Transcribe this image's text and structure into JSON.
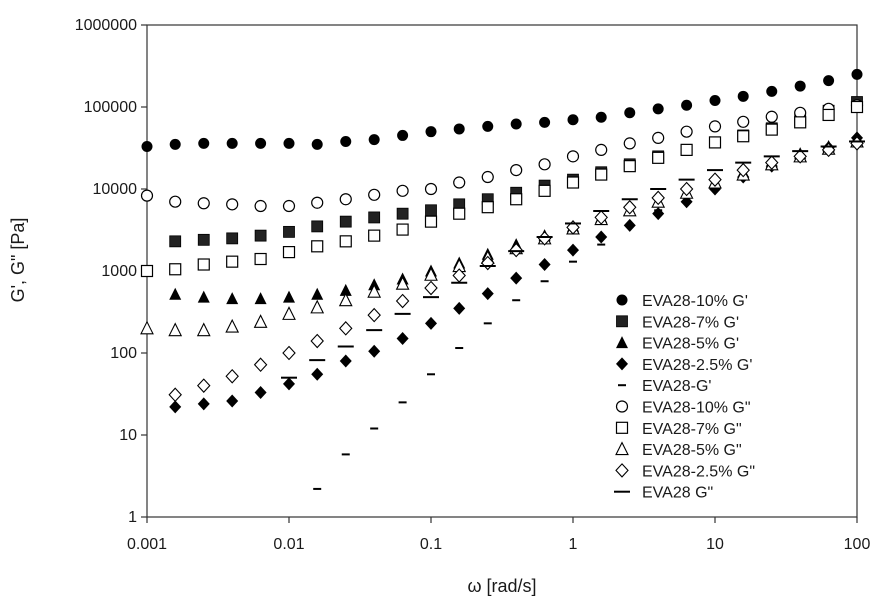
{
  "chart_data": {
    "type": "scatter",
    "title": "",
    "xlabel": "ω [rad/s]",
    "ylabel": "G', G\" [Pa]",
    "x_scale": "log",
    "y_scale": "log",
    "xlim": [
      0.001,
      100
    ],
    "ylim": [
      1,
      1000000
    ],
    "x_ticks": [
      "0.001",
      "0.01",
      "0.1",
      "1",
      "10",
      "100"
    ],
    "y_ticks": [
      "1",
      "10",
      "100",
      "1000",
      "10000",
      "100000",
      "1000000"
    ],
    "grid": false,
    "legend_position": "bottom-right",
    "x": [
      0.001,
      0.00158,
      0.00251,
      0.00398,
      0.00631,
      0.01,
      0.0158,
      0.0251,
      0.0398,
      0.0631,
      0.1,
      0.158,
      0.251,
      0.398,
      0.631,
      1,
      1.58,
      2.51,
      3.98,
      6.31,
      10,
      15.8,
      25.1,
      39.8,
      63.1,
      100
    ],
    "series": [
      {
        "name": "EVA28-10% G'",
        "marker": "filled-circle",
        "color": "#000000",
        "values": [
          33000,
          35000,
          36000,
          36000,
          36000,
          36000,
          35000,
          38000,
          40000,
          45000,
          50000,
          54000,
          58000,
          62000,
          65000,
          70000,
          75000,
          85000,
          95000,
          105000,
          120000,
          135000,
          155000,
          180000,
          210000,
          250000
        ]
      },
      {
        "name": "EVA28-7% G'",
        "marker": "filled-square",
        "color": "#222222",
        "values": [
          null,
          2300,
          2400,
          2500,
          2700,
          3000,
          3500,
          4000,
          4500,
          5000,
          5500,
          6500,
          7500,
          9000,
          11000,
          13000,
          16000,
          20000,
          25000,
          30000,
          37000,
          45000,
          55000,
          70000,
          90000,
          115000
        ]
      },
      {
        "name": "EVA28-5% G'",
        "marker": "filled-triangle",
        "color": "#000000",
        "values": [
          null,
          520,
          480,
          460,
          460,
          480,
          520,
          580,
          680,
          800,
          1000,
          1250,
          1600,
          2100,
          2700,
          3500,
          4500,
          5500,
          7000,
          9000,
          12000,
          16000,
          21000,
          27000,
          33000,
          42000
        ]
      },
      {
        "name": "EVA28-2.5% G'",
        "marker": "filled-diamond",
        "color": "#000000",
        "values": [
          null,
          22,
          24,
          26,
          33,
          42,
          55,
          80,
          105,
          150,
          230,
          350,
          530,
          820,
          1200,
          1800,
          2600,
          3600,
          5000,
          7000,
          10000,
          14000,
          19000,
          25000,
          32000,
          42000
        ]
      },
      {
        "name": "EVA28-G'",
        "marker": "dash",
        "color": "#000000",
        "values": [
          null,
          null,
          null,
          null,
          null,
          null,
          2.2,
          5.8,
          12,
          25,
          55,
          115,
          230,
          440,
          750,
          1300,
          2100,
          3500,
          5500,
          8500,
          13000,
          17000,
          21000,
          25000,
          29000,
          36000
        ]
      },
      {
        "name": "EVA28-10% G\"",
        "marker": "open-circle",
        "color": "#000000",
        "values": [
          8300,
          7000,
          6700,
          6500,
          6200,
          6200,
          6800,
          7500,
          8500,
          9500,
          10000,
          12000,
          14000,
          17000,
          20000,
          25000,
          30000,
          36000,
          42000,
          50000,
          58000,
          66000,
          76000,
          85000,
          95000,
          105000
        ]
      },
      {
        "name": "EVA28-7% G\"",
        "marker": "open-square",
        "color": "#000000",
        "values": [
          1000,
          1050,
          1200,
          1300,
          1400,
          1700,
          2000,
          2300,
          2700,
          3200,
          4000,
          5000,
          6000,
          7500,
          9500,
          12000,
          15000,
          19000,
          24000,
          30000,
          37000,
          44000,
          53000,
          65000,
          80000,
          100000
        ]
      },
      {
        "name": "EVA28-5% G\"",
        "marker": "open-triangle",
        "color": "#000000",
        "values": [
          200,
          190,
          190,
          210,
          240,
          300,
          360,
          440,
          560,
          700,
          900,
          1150,
          1450,
          1900,
          2500,
          3300,
          4300,
          5500,
          7000,
          9000,
          12000,
          15000,
          20000,
          25000,
          31000,
          38000
        ]
      },
      {
        "name": "EVA28-2.5% G\"",
        "marker": "open-diamond",
        "color": "#000000",
        "values": [
          null,
          31,
          40,
          52,
          72,
          100,
          140,
          200,
          290,
          430,
          620,
          880,
          1250,
          1800,
          2500,
          3400,
          4500,
          6000,
          7800,
          10000,
          13000,
          17000,
          21000,
          25000,
          30000,
          36000
        ]
      },
      {
        "name": "EVA28 G\"",
        "marker": "bar",
        "color": "#000000",
        "values": [
          null,
          null,
          null,
          null,
          null,
          50,
          82,
          120,
          190,
          300,
          480,
          720,
          1150,
          1750,
          2600,
          3800,
          5400,
          7500,
          10000,
          13000,
          17000,
          21000,
          25000,
          29000,
          33000,
          38000
        ]
      }
    ]
  }
}
